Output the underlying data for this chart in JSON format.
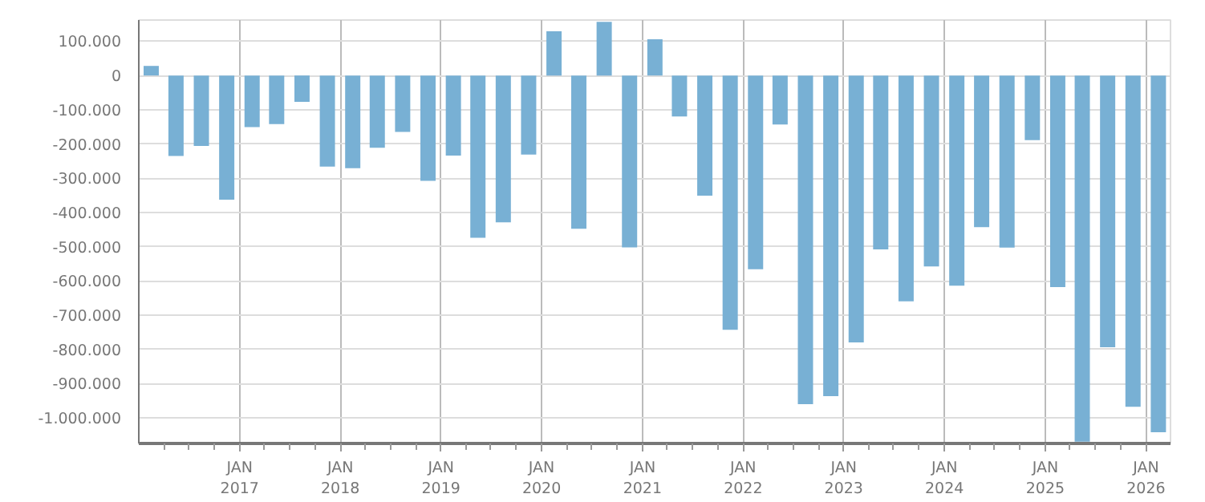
{
  "chart_data": {
    "type": "bar",
    "x": [
      "2016-02-15",
      "2016-05-15",
      "2016-08-15",
      "2016-11-15",
      "2017-02-15",
      "2017-05-15",
      "2017-08-15",
      "2017-11-15",
      "2018-02-15",
      "2018-05-15",
      "2018-08-15",
      "2018-11-15",
      "2019-02-15",
      "2019-05-15",
      "2019-08-15",
      "2019-11-15",
      "2020-02-15",
      "2020-05-15",
      "2020-08-15",
      "2020-11-15",
      "2021-02-15",
      "2021-05-15",
      "2021-08-15",
      "2021-11-15",
      "2022-02-15",
      "2022-05-15",
      "2022-08-15",
      "2022-11-15",
      "2023-02-15",
      "2023-05-15",
      "2023-08-15",
      "2023-11-15",
      "2024-02-15",
      "2024-05-15",
      "2024-08-15",
      "2024-11-15",
      "2025-02-15",
      "2025-05-15",
      "2025-08-15",
      "2025-11-15",
      "2026-02-15"
    ],
    "values": [
      28000,
      -235000,
      -206000,
      -363000,
      -151000,
      -142000,
      -77000,
      -266000,
      -271000,
      -211000,
      -165000,
      -308000,
      -234000,
      -474000,
      -429000,
      -231000,
      129000,
      -448000,
      157000,
      -502000,
      106000,
      -120000,
      -351000,
      -743000,
      -566000,
      -143000,
      -960000,
      -937000,
      -780000,
      -508000,
      -660000,
      -558000,
      -614000,
      -443000,
      -503000,
      -189000,
      -618000,
      -1070000,
      -794000,
      -968000,
      -1042000
    ],
    "color": "#78b0d4",
    "xlim": [
      "2016-01-01",
      "2026-03-31"
    ],
    "xticks": [
      {
        "value": "2016-04-01",
        "label": null
      },
      {
        "value": "2016-07-01",
        "label": null
      },
      {
        "value": "2016-10-01",
        "label": null
      },
      {
        "value": "2017-01-01",
        "label": "JAN\n2017"
      },
      {
        "value": "2017-04-01",
        "label": null
      },
      {
        "value": "2017-07-01",
        "label": null
      },
      {
        "value": "2017-10-01",
        "label": null
      },
      {
        "value": "2018-01-01",
        "label": "JAN\n2018"
      },
      {
        "value": "2018-04-01",
        "label": null
      },
      {
        "value": "2018-07-01",
        "label": null
      },
      {
        "value": "2018-10-01",
        "label": null
      },
      {
        "value": "2019-01-01",
        "label": "JAN\n2019"
      },
      {
        "value": "2019-04-01",
        "label": null
      },
      {
        "value": "2019-07-01",
        "label": null
      },
      {
        "value": "2019-10-01",
        "label": null
      },
      {
        "value": "2020-01-01",
        "label": "JAN\n2020"
      },
      {
        "value": "2020-04-01",
        "label": null
      },
      {
        "value": "2020-07-01",
        "label": null
      },
      {
        "value": "2020-10-01",
        "label": null
      },
      {
        "value": "2021-01-01",
        "label": "JAN\n2021"
      },
      {
        "value": "2021-04-01",
        "label": null
      },
      {
        "value": "2021-07-01",
        "label": null
      },
      {
        "value": "2021-10-01",
        "label": null
      },
      {
        "value": "2022-01-01",
        "label": "JAN\n2022"
      },
      {
        "value": "2022-04-01",
        "label": null
      },
      {
        "value": "2022-07-01",
        "label": null
      },
      {
        "value": "2022-10-01",
        "label": null
      },
      {
        "value": "2023-01-01",
        "label": "JAN\n2023"
      },
      {
        "value": "2023-04-01",
        "label": null
      },
      {
        "value": "2023-07-01",
        "label": null
      },
      {
        "value": "2023-10-01",
        "label": null
      },
      {
        "value": "2024-01-01",
        "label": "JAN\n2024"
      },
      {
        "value": "2024-04-01",
        "label": null
      },
      {
        "value": "2024-07-01",
        "label": null
      },
      {
        "value": "2024-10-01",
        "label": null
      },
      {
        "value": "2025-01-01",
        "label": "JAN\n2025"
      },
      {
        "value": "2025-04-01",
        "label": null
      },
      {
        "value": "2025-07-01",
        "label": null
      },
      {
        "value": "2025-10-01",
        "label": null
      },
      {
        "value": "2026-01-01",
        "label": "JAN\n2026"
      }
    ],
    "ylim": [
      -1075000,
      162000
    ],
    "yticks": [
      {
        "value": 100000,
        "label": "100.000"
      },
      {
        "value": 0,
        "label": "0"
      },
      {
        "value": -100000,
        "label": "-100.000"
      },
      {
        "value": -200000,
        "label": "-200.000"
      },
      {
        "value": -300000,
        "label": "-300.000"
      },
      {
        "value": -400000,
        "label": "-400.000"
      },
      {
        "value": -500000,
        "label": "-500.000"
      },
      {
        "value": -600000,
        "label": "-600.000"
      },
      {
        "value": -700000,
        "label": "-700.000"
      },
      {
        "value": -800000,
        "label": "-800.000"
      },
      {
        "value": -900000,
        "label": "-900.000"
      },
      {
        "value": -1000000,
        "label": "-1.000.000"
      }
    ],
    "grid": true
  }
}
